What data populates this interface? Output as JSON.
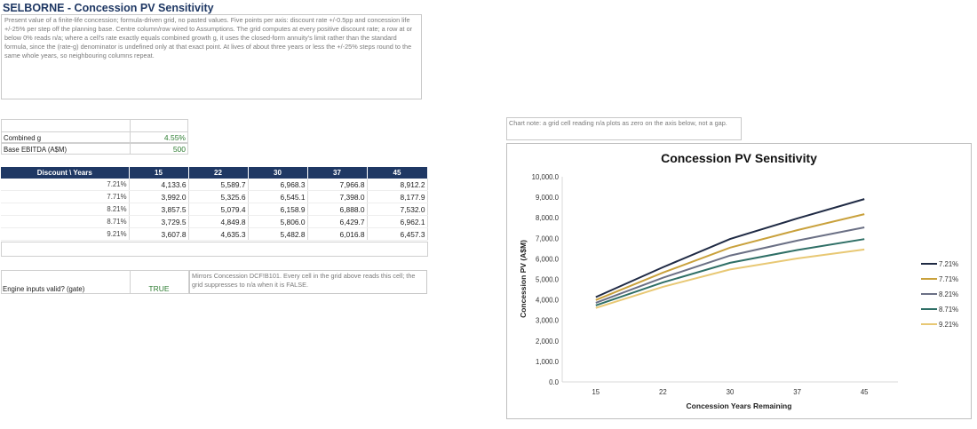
{
  "sheet": {
    "title": "SELBORNE - Concession PV Sensitivity",
    "description": "Present value of a finite-life concession; formula-driven grid, no pasted values. Five points per axis: discount rate +/-0.5pp and concession life +/-25% per step off the planning base. Centre column/row wired to Assumptions. The grid computes at every positive discount rate; a row at or below 0% reads n/a; where a cell's rate exactly equals combined growth g, it uses the closed-form annuity's limit rather than the standard formula, since the (rate-g) denominator is undefined only at that exact point. At lives of about three years or less the +/-25% steps round to the same whole years, so neighbouring columns repeat."
  },
  "inputs": {
    "combined_g_label": "Combined g",
    "combined_g_value": "4.55%",
    "base_ebitda_label": "Base EBITDA (A$M)",
    "base_ebitda_value": "500"
  },
  "grid": {
    "corner_label": "Discount \\ Years",
    "columns": [
      "15",
      "22",
      "30",
      "37",
      "45"
    ],
    "rows": [
      {
        "rate": "7.21%",
        "cells": [
          "4,133.6",
          "5,589.7",
          "6,968.3",
          "7,966.8",
          "8,912.2"
        ]
      },
      {
        "rate": "7.71%",
        "cells": [
          "3,992.0",
          "5,325.6",
          "6,545.1",
          "7,398.0",
          "8,177.9"
        ]
      },
      {
        "rate": "8.21%",
        "cells": [
          "3,857.5",
          "5,079.4",
          "6,158.9",
          "6,888.0",
          "7,532.0"
        ]
      },
      {
        "rate": "8.71%",
        "cells": [
          "3,729.5",
          "4,849.8",
          "5,806.0",
          "6,429.7",
          "6,962.1"
        ]
      },
      {
        "rate": "9.21%",
        "cells": [
          "3,607.8",
          "4,635.3",
          "5,482.8",
          "6,016.8",
          "6,457.3"
        ]
      }
    ]
  },
  "gate": {
    "label": "Engine inputs valid? (gate)",
    "value": "TRUE",
    "note": "Mirrors Concession DCF!B101. Every cell in the grid above reads this cell; the grid suppresses to n/a when it is FALSE."
  },
  "chart_note": "Chart note: a grid cell reading n/a plots as zero on the axis below, not a gap.",
  "chart_data": {
    "type": "line",
    "title": "Concession PV Sensitivity",
    "xlabel": "Concession Years Remaining",
    "ylabel": "Concession PV (A$M)",
    "categories": [
      "15",
      "22",
      "30",
      "37",
      "45"
    ],
    "ylim": [
      0,
      10000
    ],
    "yticks": [
      "0.0",
      "1,000.0",
      "2,000.0",
      "3,000.0",
      "4,000.0",
      "5,000.0",
      "6,000.0",
      "7,000.0",
      "8,000.0",
      "9,000.0",
      "10,000.0"
    ],
    "grid": false,
    "legend": "right",
    "series": [
      {
        "name": "7.21%",
        "color": "#1f2a44",
        "values": [
          4133.6,
          5589.7,
          6968.3,
          7966.8,
          8912.2
        ]
      },
      {
        "name": "7.71%",
        "color": "#c9a13c",
        "values": [
          3992.0,
          5325.6,
          6545.1,
          7398.0,
          8177.9
        ]
      },
      {
        "name": "8.21%",
        "color": "#6b7085",
        "values": [
          3857.5,
          5079.4,
          6158.9,
          6888.0,
          7532.0
        ]
      },
      {
        "name": "8.71%",
        "color": "#2f6f66",
        "values": [
          3729.5,
          4849.8,
          5806.0,
          6429.7,
          6962.1
        ]
      },
      {
        "name": "9.21%",
        "color": "#e8c874",
        "values": [
          3607.8,
          4635.3,
          5482.8,
          6016.8,
          6457.3
        ]
      }
    ]
  }
}
